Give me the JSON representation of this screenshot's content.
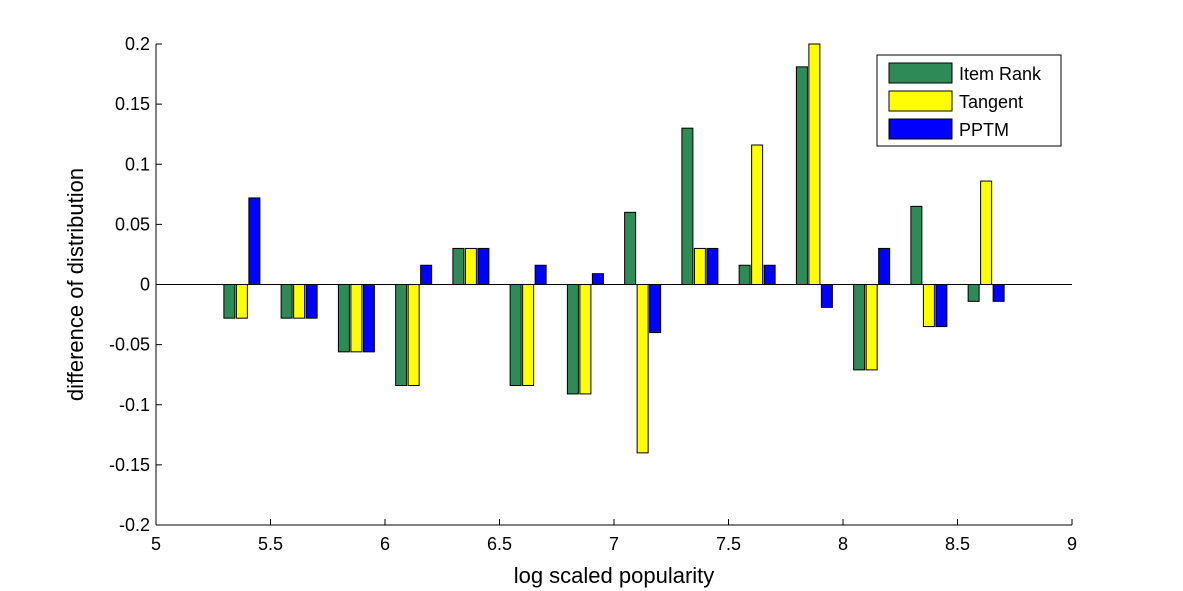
{
  "chart_data": {
    "type": "bar",
    "xlabel": "log scaled popularity",
    "ylabel": "difference of distribution",
    "xlim": [
      5,
      9
    ],
    "ylim": [
      -0.2,
      0.2
    ],
    "xticks": [
      5,
      5.5,
      6,
      6.5,
      7,
      7.5,
      8,
      8.5,
      9
    ],
    "xtick_labels": [
      "5",
      "5.5",
      "6",
      "6.5",
      "7",
      "7.5",
      "8",
      "8.5",
      "9"
    ],
    "yticks": [
      -0.2,
      -0.15,
      -0.1,
      -0.05,
      0,
      0.05,
      0.1,
      0.15,
      0.2
    ],
    "ytick_labels": [
      "-0.2",
      "-0.15",
      "-0.1",
      "-0.05",
      "0",
      "0.05",
      "0.1",
      "0.15",
      "0.2"
    ],
    "categories": [
      5.375,
      5.625,
      5.875,
      6.125,
      6.375,
      6.625,
      6.875,
      7.125,
      7.375,
      7.625,
      7.875,
      8.125,
      8.375,
      8.625
    ],
    "series": [
      {
        "name": "Item Rank",
        "color": "#2e8b57",
        "values": [
          -0.028,
          -0.028,
          -0.056,
          -0.084,
          0.03,
          -0.084,
          -0.091,
          0.06,
          0.13,
          0.016,
          0.181,
          -0.071,
          0.065,
          -0.014
        ]
      },
      {
        "name": "Tangent",
        "color": "#ffff00",
        "values": [
          -0.028,
          -0.028,
          -0.056,
          -0.084,
          0.03,
          -0.084,
          -0.091,
          -0.14,
          0.03,
          0.116,
          0.2,
          -0.071,
          -0.035,
          0.086
        ]
      },
      {
        "name": "PPTM",
        "color": "#0000ff",
        "values": [
          0.072,
          -0.028,
          -0.056,
          0.016,
          0.03,
          0.016,
          0.009,
          -0.04,
          0.03,
          0.016,
          -0.019,
          0.03,
          -0.035,
          -0.014
        ]
      }
    ],
    "legend_position": "top-right",
    "grid": false
  }
}
